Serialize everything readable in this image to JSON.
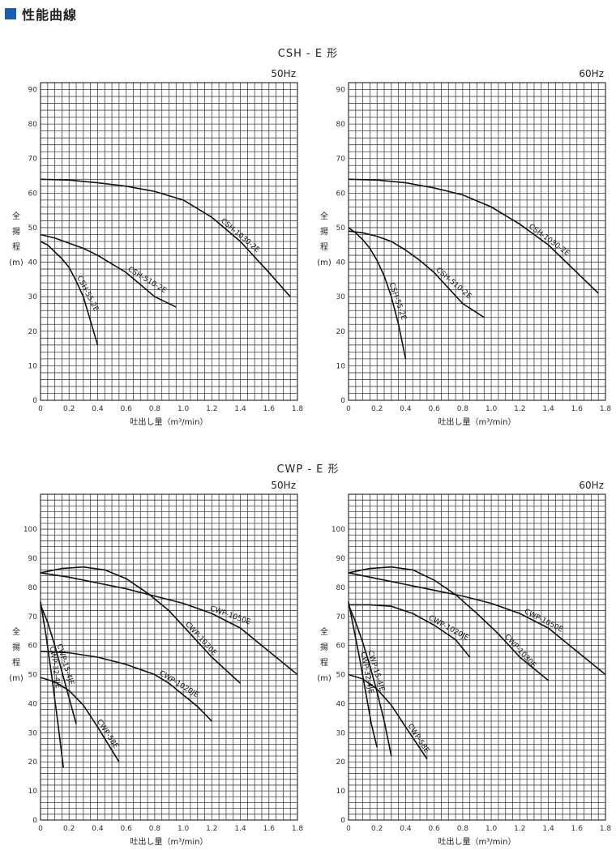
{
  "header": {
    "title": "性能曲線",
    "accent": "#1a5fb4"
  },
  "sections": [
    {
      "title": "CSH - E 形"
    },
    {
      "title": "CWP - E 形"
    }
  ],
  "chart_data": [
    {
      "type": "line",
      "frequency": "50Hz",
      "xlabel": "吐出し量（m³/min）",
      "ylabel": [
        "全",
        "揚",
        "程",
        "(m)"
      ],
      "xlim": [
        0,
        1.8
      ],
      "ylim": [
        0,
        90
      ],
      "ymax_grid": 92,
      "xticks": [
        0,
        0.2,
        0.4,
        0.6,
        0.8,
        1.0,
        1.2,
        1.4,
        1.6,
        1.8
      ],
      "xtick_labels": [
        "0",
        "0.2",
        "0.4",
        "0.6",
        "0.8",
        "1.0",
        "1.2",
        "1.4",
        "1.6",
        "1.8"
      ],
      "yticks": [
        10,
        20,
        30,
        40,
        50,
        60,
        70,
        80,
        90
      ],
      "series": [
        {
          "name": "CSH-1030-2E",
          "x": [
            0,
            0.2,
            0.4,
            0.6,
            0.8,
            1.0,
            1.2,
            1.4,
            1.6,
            1.75
          ],
          "y": [
            64,
            63.8,
            63,
            62,
            60.5,
            58,
            53,
            46,
            37,
            30
          ],
          "label_at": 1.25
        },
        {
          "name": "CSH-510-2E",
          "x": [
            0,
            0.1,
            0.2,
            0.3,
            0.4,
            0.5,
            0.6,
            0.7,
            0.8,
            0.95
          ],
          "y": [
            48,
            47,
            45.5,
            44,
            42,
            39.5,
            37,
            33.5,
            30,
            27
          ],
          "label_at": 0.6
        },
        {
          "name": "CSH-55-2E",
          "x": [
            0,
            0.05,
            0.1,
            0.15,
            0.2,
            0.25,
            0.3,
            0.35,
            0.4
          ],
          "y": [
            46,
            45,
            43,
            41,
            38.5,
            34.5,
            30,
            23,
            16
          ],
          "label_at": 0.24
        }
      ]
    },
    {
      "type": "line",
      "frequency": "60Hz",
      "xlabel": "吐出し量（m³/min）",
      "ylabel": [
        "全",
        "揚",
        "程",
        "(m)"
      ],
      "xlim": [
        0,
        1.8
      ],
      "ylim": [
        0,
        90
      ],
      "ymax_grid": 92,
      "xticks": [
        0,
        0.2,
        0.4,
        0.6,
        0.8,
        1.0,
        1.2,
        1.4,
        1.6,
        1.8
      ],
      "xtick_labels": [
        "0",
        "0.2",
        "0.4",
        "0.6",
        "0.8",
        "1.0",
        "1.2",
        "1.4",
        "1.6",
        "1.8"
      ],
      "yticks": [
        10,
        20,
        30,
        40,
        50,
        60,
        70,
        80,
        90
      ],
      "series": [
        {
          "name": "CSH-1030-2E",
          "x": [
            0,
            0.2,
            0.4,
            0.6,
            0.8,
            1.0,
            1.2,
            1.4,
            1.6,
            1.75
          ],
          "y": [
            64,
            63.8,
            63,
            61.5,
            59.5,
            56,
            51,
            45,
            37,
            31
          ],
          "label_at": 1.25
        },
        {
          "name": "CSH-510-2E",
          "x": [
            0,
            0.1,
            0.2,
            0.3,
            0.4,
            0.5,
            0.6,
            0.7,
            0.8,
            0.95
          ],
          "y": [
            49,
            48.5,
            47.5,
            46,
            43.5,
            40.5,
            37,
            32.5,
            28,
            24
          ],
          "label_at": 0.6
        },
        {
          "name": "CSH-55-2E",
          "x": [
            0,
            0.05,
            0.1,
            0.15,
            0.2,
            0.25,
            0.3,
            0.35,
            0.4
          ],
          "y": [
            50,
            48.5,
            46.5,
            44,
            40.5,
            36,
            30,
            22,
            12
          ],
          "label_at": 0.27
        }
      ]
    },
    {
      "type": "line",
      "frequency": "50Hz",
      "xlabel": "吐出し量（m³/min）",
      "ylabel": [
        "全",
        "揚",
        "程",
        "(m)"
      ],
      "xlim": [
        0,
        1.8
      ],
      "ylim": [
        0,
        110
      ],
      "ymax_grid": 112,
      "xticks": [
        0,
        0.2,
        0.4,
        0.6,
        0.8,
        1.0,
        1.2,
        1.4,
        1.6,
        1.8
      ],
      "xtick_labels": [
        "0",
        "0.2",
        "0.4",
        "0.6",
        "0.8",
        "1.0",
        "1.2",
        "1.4",
        "1.6",
        "1.8"
      ],
      "yticks": [
        10,
        20,
        30,
        40,
        50,
        60,
        70,
        80,
        90,
        100
      ],
      "series": [
        {
          "name": "CWP-1050E",
          "x": [
            0,
            0.2,
            0.4,
            0.6,
            0.8,
            1.0,
            1.2,
            1.4,
            1.6,
            1.8
          ],
          "y": [
            85,
            83.5,
            81.5,
            79.5,
            77,
            74.5,
            71,
            66,
            58,
            50
          ],
          "label_at": 1.18
        },
        {
          "name": "CWP-1030E",
          "x": [
            0,
            0.15,
            0.3,
            0.45,
            0.6,
            0.75,
            0.9,
            1.05,
            1.2,
            1.4
          ],
          "y": [
            85,
            86.5,
            87,
            86,
            83,
            78,
            72,
            64,
            56,
            47
          ],
          "label_at": 1.0
        },
        {
          "name": "CWP-1020JE",
          "x": [
            0,
            0.2,
            0.4,
            0.6,
            0.8,
            0.9,
            1.0,
            1.1,
            1.2
          ],
          "y": [
            58,
            57.5,
            56,
            53.5,
            50,
            47,
            43,
            39,
            34
          ],
          "label_at": 0.82
        },
        {
          "name": "CWP-15-4JE",
          "x": [
            0,
            0.05,
            0.1,
            0.15,
            0.2,
            0.25
          ],
          "y": [
            74,
            68,
            60,
            51,
            42,
            33
          ],
          "label_at": 0.1
        },
        {
          "name": "CWP-32-4JE",
          "x": [
            0,
            0.04,
            0.08,
            0.12,
            0.16
          ],
          "y": [
            75,
            63,
            49,
            34,
            18
          ],
          "label_at": 0.05
        },
        {
          "name": "CWP-58E",
          "x": [
            0,
            0.1,
            0.2,
            0.3,
            0.4,
            0.55
          ],
          "y": [
            49,
            47.5,
            44.5,
            39.5,
            32,
            20
          ],
          "label_at": 0.38
        }
      ]
    },
    {
      "type": "line",
      "frequency": "60Hz",
      "xlabel": "吐出し量（m³/min）",
      "ylabel": [
        "全",
        "揚",
        "程",
        "(m)"
      ],
      "xlim": [
        0,
        1.8
      ],
      "ylim": [
        0,
        110
      ],
      "ymax_grid": 112,
      "xticks": [
        0,
        0.2,
        0.4,
        0.6,
        0.8,
        1.0,
        1.2,
        1.4,
        1.6,
        1.8
      ],
      "xtick_labels": [
        "0",
        "0.2",
        "0.4",
        "0.6",
        "0.8",
        "1.0",
        "1.2",
        "1.4",
        "1.6",
        "1.8"
      ],
      "yticks": [
        10,
        20,
        30,
        40,
        50,
        60,
        70,
        80,
        90,
        100
      ],
      "series": [
        {
          "name": "CWP-1050E",
          "x": [
            0,
            0.2,
            0.4,
            0.6,
            0.8,
            1.0,
            1.2,
            1.4,
            1.6,
            1.8
          ],
          "y": [
            85,
            83,
            81,
            79,
            77,
            74.5,
            71,
            66,
            58,
            50
          ],
          "label_at": 1.22
        },
        {
          "name": "CWP-1030E",
          "x": [
            0,
            0.15,
            0.3,
            0.45,
            0.6,
            0.75,
            0.9,
            1.05,
            1.2,
            1.4
          ],
          "y": [
            85,
            86.5,
            87,
            86,
            82.5,
            77.5,
            71,
            64,
            56,
            48
          ],
          "label_at": 1.08
        },
        {
          "name": "CWP-1020JE",
          "x": [
            0,
            0.15,
            0.3,
            0.45,
            0.6,
            0.75,
            0.85
          ],
          "y": [
            74,
            74,
            73.5,
            71,
            67,
            62,
            56
          ],
          "label_at": 0.55
        },
        {
          "name": "CWP-15-4JE",
          "x": [
            0,
            0.05,
            0.1,
            0.15,
            0.2,
            0.25,
            0.3
          ],
          "y": [
            74,
            68,
            61,
            53,
            44,
            34,
            22
          ],
          "label_at": 0.12
        },
        {
          "name": "CWP-32-4JE",
          "x": [
            0,
            0.04,
            0.08,
            0.12,
            0.16,
            0.2
          ],
          "y": [
            75,
            65,
            55,
            44,
            33,
            25
          ],
          "label_at": 0.07
        },
        {
          "name": "CWP-58E",
          "x": [
            0,
            0.1,
            0.2,
            0.3,
            0.4,
            0.55
          ],
          "y": [
            50,
            48.5,
            45,
            39.5,
            32,
            21
          ],
          "label_at": 0.4
        }
      ]
    }
  ]
}
